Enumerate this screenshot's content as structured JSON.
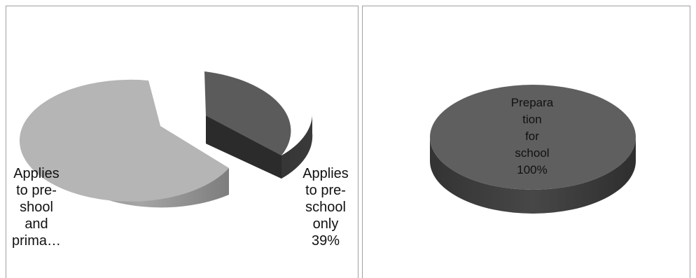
{
  "chart_data": [
    {
      "type": "pie",
      "style": "3d-exploded",
      "slices": [
        {
          "label_lines": [
            "Applies",
            "to pre-",
            "school",
            "only",
            "39%"
          ],
          "value": 39,
          "color": "#5a5a5a"
        },
        {
          "label_lines": [
            "Applies",
            "to pre-",
            "shool",
            "and",
            "prima…"
          ],
          "value": 61,
          "color": "#b4b4b4"
        }
      ]
    },
    {
      "type": "pie",
      "style": "3d",
      "slices": [
        {
          "label_lines": [
            "Prepara",
            "tion",
            "for",
            "school",
            "100%"
          ],
          "value": 100,
          "color": "#5e5e5e"
        }
      ]
    }
  ]
}
